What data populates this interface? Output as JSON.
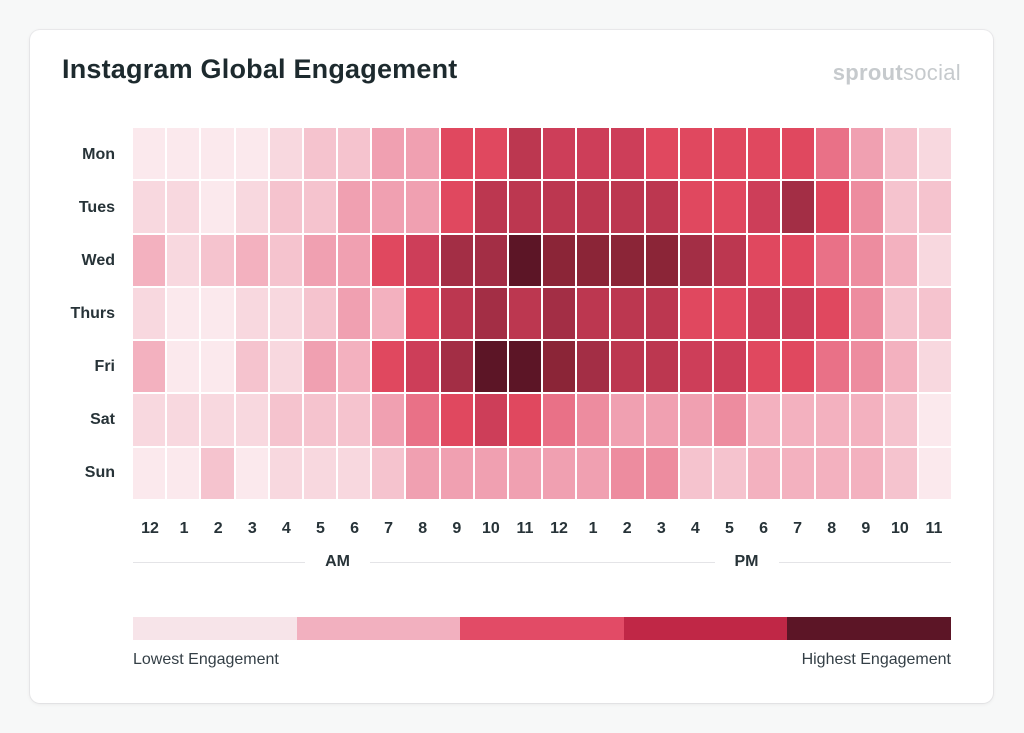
{
  "title": "Instagram Global Engagement",
  "brand": {
    "name_bold": "sprout",
    "name_light": "social"
  },
  "colors": {
    "page_bg": "#f7f8f8",
    "card_bg": "#ffffff",
    "title_text": "#1d2a2e",
    "axis_text": "#273338",
    "brand_text": "#c6cacd",
    "axis_line": "#e4e4e7"
  },
  "chart_data": {
    "type": "heatmap",
    "title": "Instagram Global Engagement",
    "x_axis": {
      "tick_labels": [
        "12",
        "1",
        "2",
        "3",
        "4",
        "5",
        "6",
        "7",
        "8",
        "9",
        "10",
        "11",
        "12",
        "1",
        "2",
        "3",
        "4",
        "5",
        "6",
        "7",
        "8",
        "9",
        "10",
        "11"
      ],
      "groups": [
        {
          "label": "AM",
          "start_col": 0,
          "end_col": 11
        },
        {
          "label": "PM",
          "start_col": 12,
          "end_col": 23
        }
      ]
    },
    "y_axis": {
      "tick_labels": [
        "Mon",
        "Tues",
        "Wed",
        "Thurs",
        "Fri",
        "Sat",
        "Sun"
      ]
    },
    "value_scale": {
      "min": 1,
      "max": 13,
      "meaning": "relative engagement level read from cell color; 1 = lowest engagement, 13 = highest engagement"
    },
    "palette": [
      "#fbe9ed",
      "#f8d8df",
      "#f5c3ce",
      "#f3b1bf",
      "#f0a0b1",
      "#ed8c9f",
      "#e97187",
      "#e0485f",
      "#cd3e59",
      "#bc3750",
      "#a32e45",
      "#8b2537",
      "#5c1526"
    ],
    "series": [
      {
        "name": "Mon",
        "values": [
          1,
          1,
          1,
          1,
          2,
          3,
          3,
          5,
          5,
          8,
          8,
          10,
          9,
          9,
          9,
          8,
          8,
          8,
          8,
          8,
          7,
          5,
          3,
          2
        ]
      },
      {
        "name": "Tues",
        "values": [
          2,
          2,
          1,
          2,
          3,
          3,
          5,
          5,
          5,
          8,
          10,
          10,
          10,
          10,
          10,
          10,
          8,
          8,
          9,
          11,
          8,
          6,
          3,
          3
        ]
      },
      {
        "name": "Wed",
        "values": [
          4,
          2,
          3,
          4,
          3,
          5,
          5,
          8,
          9,
          11,
          11,
          13,
          12,
          12,
          12,
          12,
          11,
          10,
          8,
          8,
          7,
          6,
          4,
          2
        ]
      },
      {
        "name": "Thurs",
        "values": [
          2,
          1,
          1,
          2,
          2,
          3,
          5,
          4,
          8,
          10,
          11,
          10,
          11,
          10,
          10,
          10,
          8,
          8,
          9,
          9,
          8,
          6,
          3,
          3
        ]
      },
      {
        "name": "Fri",
        "values": [
          4,
          1,
          1,
          3,
          2,
          5,
          4,
          8,
          9,
          11,
          13,
          13,
          12,
          11,
          10,
          10,
          9,
          9,
          8,
          8,
          7,
          6,
          4,
          2
        ]
      },
      {
        "name": "Sat",
        "values": [
          2,
          2,
          2,
          2,
          3,
          3,
          3,
          5,
          7,
          8,
          9,
          8,
          7,
          6,
          5,
          5,
          5,
          6,
          4,
          4,
          4,
          4,
          3,
          1
        ]
      },
      {
        "name": "Sun",
        "values": [
          1,
          1,
          3,
          1,
          2,
          2,
          2,
          3,
          5,
          5,
          5,
          5,
          5,
          5,
          6,
          6,
          3,
          3,
          4,
          4,
          4,
          4,
          3,
          1
        ]
      }
    ],
    "legend": {
      "left_label": "Lowest Engagement",
      "right_label": "Highest Engagement",
      "swatches": [
        "#f7e4e9",
        "#f2b0bf",
        "#e24b66",
        "#c02746",
        "#5c1526"
      ],
      "position": "bottom"
    },
    "grid": "white 2px gaps between cells"
  }
}
